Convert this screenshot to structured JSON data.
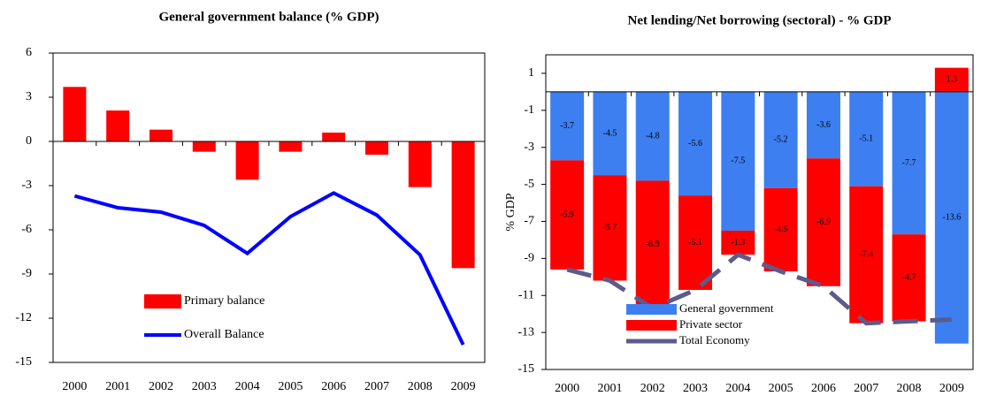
{
  "chart_data": [
    {
      "type": "bar",
      "title": "General government balance (% GDP)",
      "categories": [
        "2000",
        "2001",
        "2002",
        "2003",
        "2004",
        "2005",
        "2006",
        "2007",
        "2008",
        "2009"
      ],
      "series": [
        {
          "name": "Primary balance",
          "type": "bar",
          "color": "#ff0000",
          "values": [
            3.7,
            2.1,
            0.8,
            -0.7,
            -2.6,
            -0.7,
            0.6,
            -0.9,
            -3.1,
            -8.6
          ]
        },
        {
          "name": "Overall Balance",
          "type": "line",
          "color": "#0000ff",
          "values": [
            -3.7,
            -4.5,
            -4.8,
            -5.7,
            -7.6,
            -5.1,
            -3.5,
            -5.0,
            -7.7,
            -13.8
          ]
        }
      ],
      "ylim": [
        -15,
        6
      ],
      "yticks": [
        -15,
        -12,
        -9,
        -6,
        -3,
        0,
        3,
        6
      ],
      "legend": "lower left",
      "grid": false
    },
    {
      "type": "stacked_bar",
      "title": "Net lending/Net borrowing (sectoral)  - % GDP",
      "y_label": "% GDP",
      "categories": [
        "2000",
        "2001",
        "2002",
        "2003",
        "2004",
        "2005",
        "2006",
        "2007",
        "2008",
        "2009"
      ],
      "series": [
        {
          "name": "General government",
          "type": "bar",
          "color": "#3d7ff0",
          "label_color": "#ffffff",
          "values": [
            -3.7,
            -4.5,
            -4.8,
            -5.6,
            -7.5,
            -5.2,
            -3.6,
            -5.1,
            -7.7,
            -13.6
          ]
        },
        {
          "name": "Private sector",
          "type": "bar",
          "color": "#ff0000",
          "label_color": "#333333",
          "values": [
            -5.9,
            -5.7,
            -6.9,
            -5.1,
            -1.3,
            -4.5,
            -6.9,
            -7.4,
            -4.7,
            1.3
          ]
        },
        {
          "name": "Total Economy",
          "type": "line",
          "color": "#5b5b8c",
          "dashed": true,
          "values": [
            -9.6,
            -10.2,
            -11.7,
            -10.7,
            -8.8,
            -9.7,
            -10.5,
            -12.5,
            -12.4,
            -12.3
          ]
        }
      ],
      "ylim": [
        -15,
        2
      ],
      "yticks": [
        -15,
        -13,
        -11,
        -9,
        -7,
        -5,
        -3,
        -1,
        1
      ],
      "legend": "lower left",
      "data_labels": true,
      "grid": false
    }
  ]
}
